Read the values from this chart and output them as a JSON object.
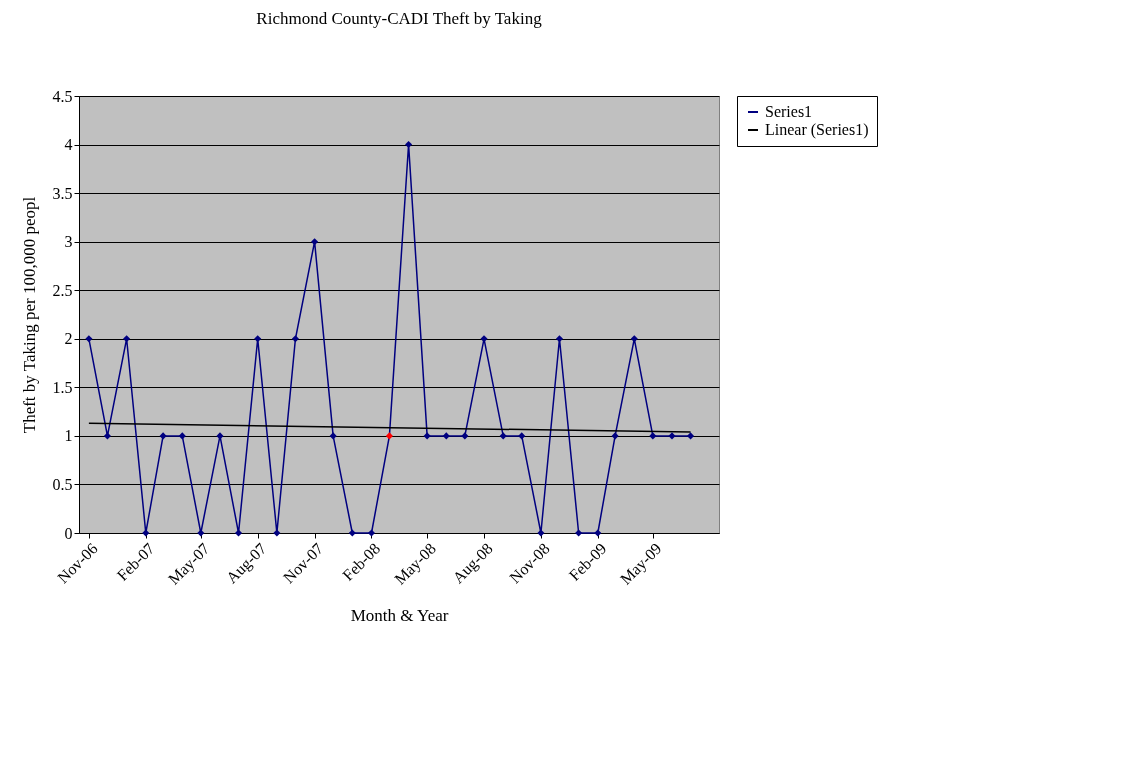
{
  "chart_data": {
    "type": "line",
    "title": "Richmond County-CADI Theft by Taking",
    "xlabel": "Month & Year",
    "ylabel": "Theft by Taking per 100,000 peopl",
    "x": [
      "2006-11",
      "2006-12",
      "2007-01",
      "2007-02",
      "2007-03",
      "2007-04",
      "2007-05",
      "2007-06",
      "2007-07",
      "2007-08",
      "2007-09",
      "2007-10",
      "2007-11",
      "2007-12",
      "2008-01",
      "2008-02",
      "2008-03",
      "2008-04",
      "2008-05",
      "2008-06",
      "2008-07",
      "2008-08",
      "2008-09",
      "2008-10",
      "2008-11",
      "2008-12",
      "2009-01",
      "2009-02",
      "2009-03",
      "2009-04",
      "2009-05",
      "2009-06",
      "2009-07"
    ],
    "series": [
      {
        "name": "Series1",
        "color": "#000080",
        "marker": "diamond",
        "colors": [
          "#000080",
          "#000080",
          "#000080",
          "#000080",
          "#000080",
          "#000080",
          "#000080",
          "#000080",
          "#000080",
          "#000080",
          "#000080",
          "#000080",
          "#000080",
          "#000080",
          "#000080",
          "#000080",
          "#ff0000",
          "#000080",
          "#000080",
          "#000080",
          "#000080",
          "#000080",
          "#000080",
          "#000080",
          "#000080",
          "#000080",
          "#000080",
          "#000080",
          "#000080",
          "#000080",
          "#000080",
          "#000080",
          "#000080"
        ],
        "values": [
          2,
          1,
          2,
          0,
          1,
          1,
          0,
          1,
          0,
          2,
          0,
          2,
          3,
          1,
          0,
          0,
          1,
          4,
          1,
          1,
          1,
          2,
          1,
          1,
          0,
          2,
          0,
          0,
          1,
          2,
          1,
          1,
          1
        ]
      },
      {
        "name": "Linear (Series1)",
        "color": "#000000",
        "marker": "none",
        "x": [
          "2006-11",
          "2009-07"
        ],
        "values": [
          1.13,
          1.04
        ]
      }
    ],
    "xlim": [
      "2006-10-16",
      "2009-08-16"
    ],
    "xticks": [
      {
        "value": "2006-11",
        "label": "Nov-06"
      },
      {
        "value": "2007-02",
        "label": "Feb-07"
      },
      {
        "value": "2007-05",
        "label": "May-07"
      },
      {
        "value": "2007-08",
        "label": "Aug-07"
      },
      {
        "value": "2007-11",
        "label": "Nov-07"
      },
      {
        "value": "2008-02",
        "label": "Feb-08"
      },
      {
        "value": "2008-05",
        "label": "May-08"
      },
      {
        "value": "2008-08",
        "label": "Aug-08"
      },
      {
        "value": "2008-11",
        "label": "Nov-08"
      },
      {
        "value": "2009-02",
        "label": "Feb-09"
      },
      {
        "value": "2009-05",
        "label": "May-09"
      }
    ],
    "ylim": [
      0,
      4.5
    ],
    "yticks": [
      0,
      0.5,
      1,
      1.5,
      2,
      2.5,
      3,
      3.5,
      4,
      4.5
    ],
    "grid": "y",
    "legend": "right",
    "line_style": "solid"
  }
}
